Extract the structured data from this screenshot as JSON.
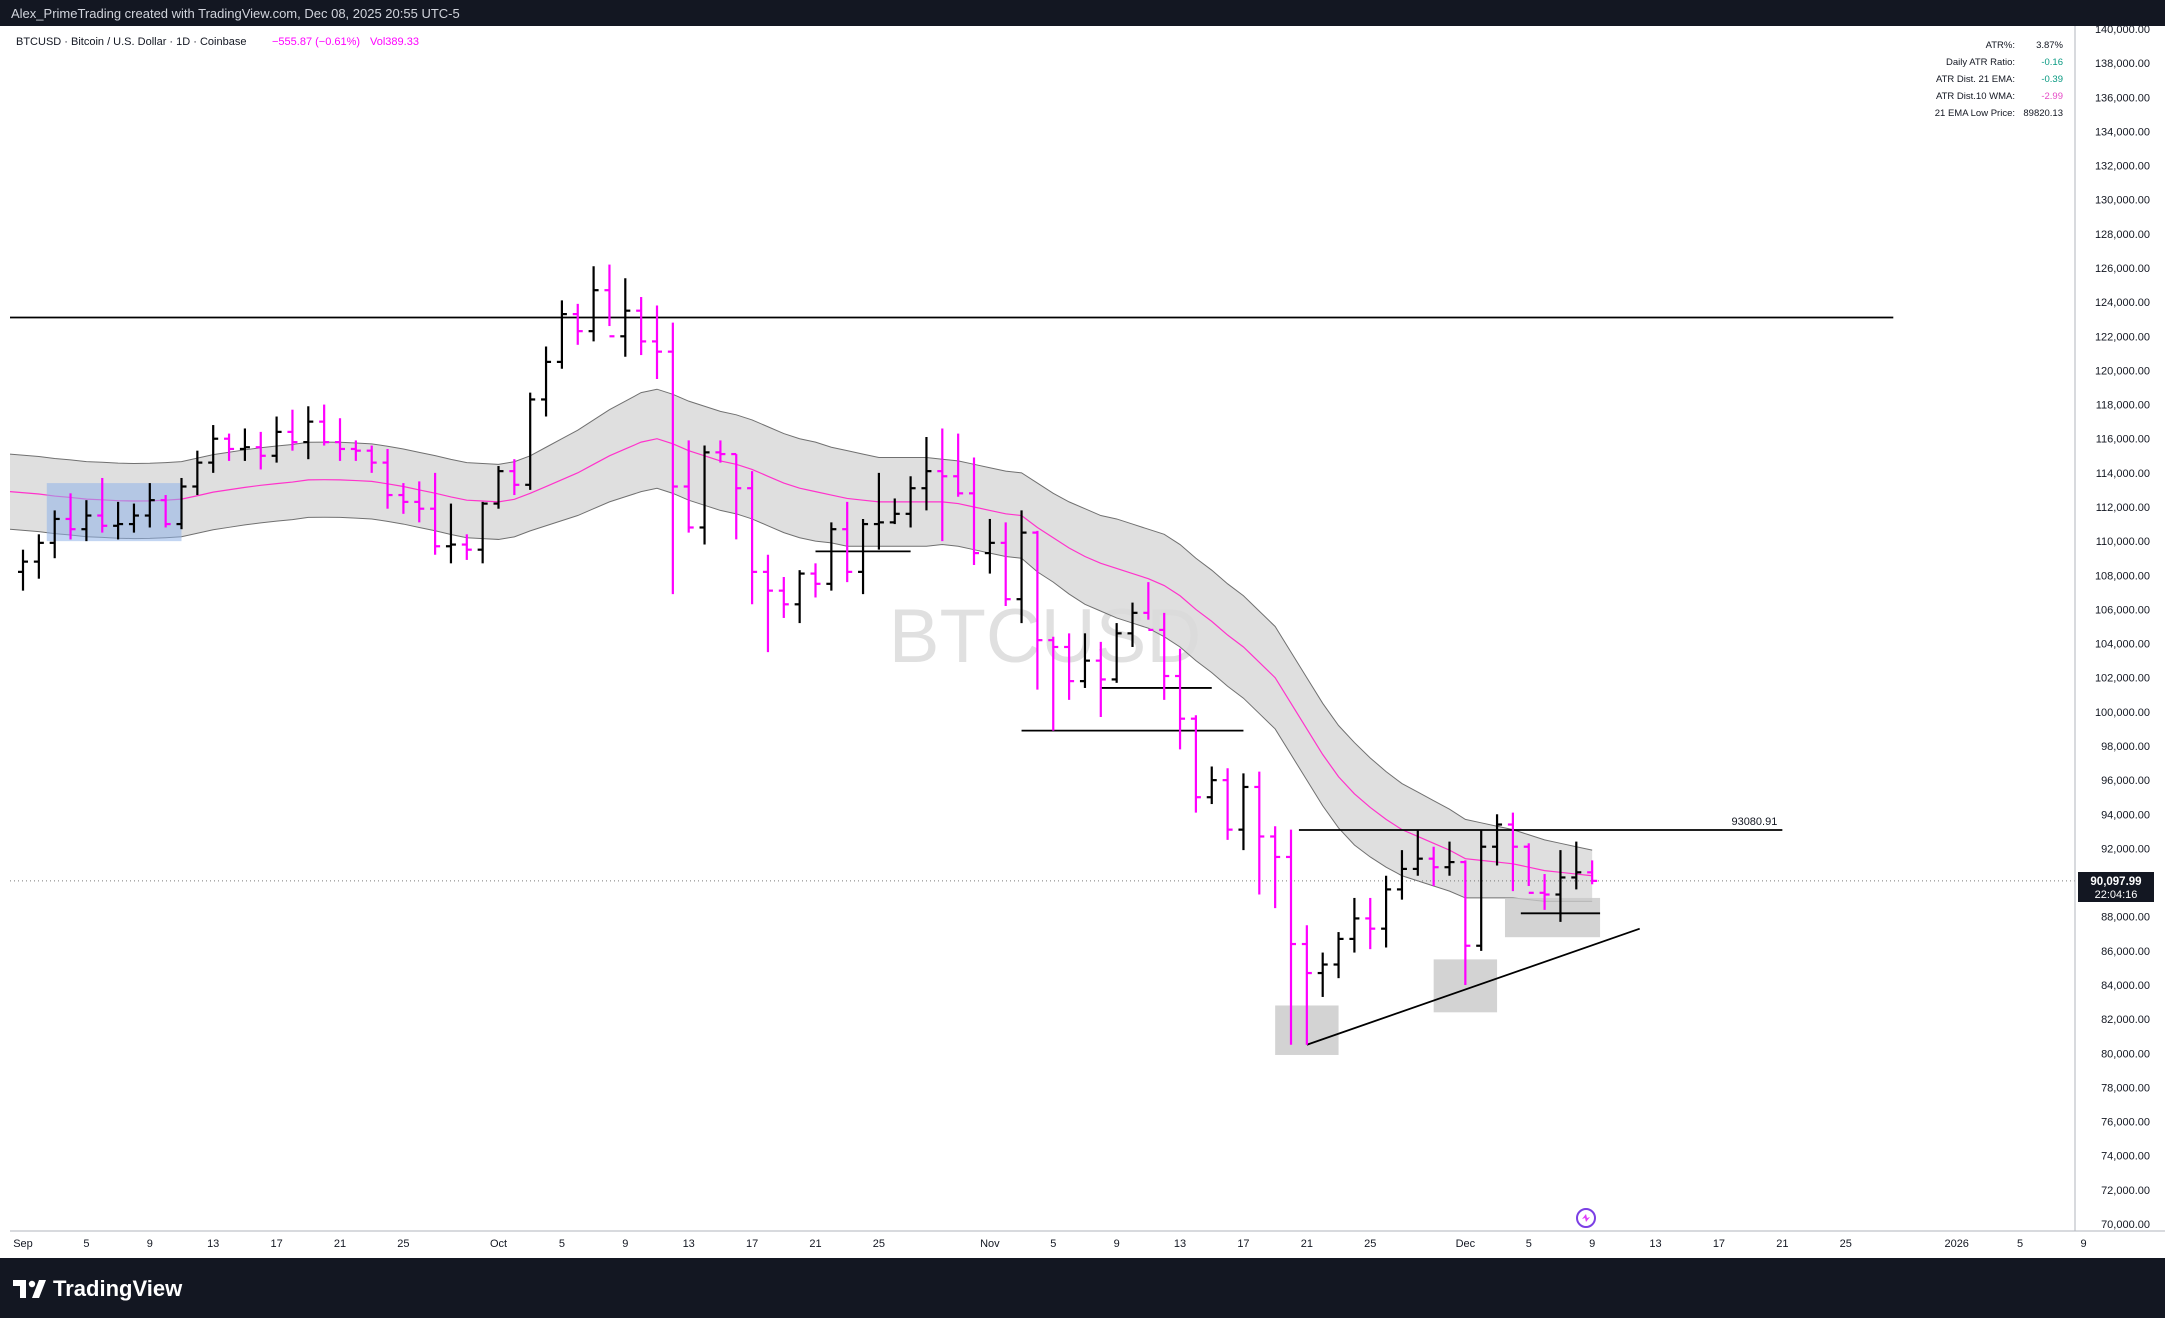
{
  "header": {
    "attribution": "Alex_PrimeTrading created with TradingView.com, Dec 08, 2025 20:55 UTC-5"
  },
  "legend": {
    "symbol": "BTCUSD · Bitcoin / U.S. Dollar · 1D · Coinbase",
    "change": "−555.87 (−0.61%)",
    "volume": "Vol389.33"
  },
  "watermark": "BTCUSD",
  "stats_table": {
    "rows": [
      {
        "label": "ATR%:",
        "value": "3.87%",
        "color": "#131722"
      },
      {
        "label": "Daily ATR Ratio:",
        "value": "-0.16",
        "color": "#089981"
      },
      {
        "label": "ATR Dist. 21 EMA:",
        "value": "-0.39",
        "color": "#089981"
      },
      {
        "label": "ATR Dist.10 WMA:",
        "value": "-2.99",
        "color": "#e64cc7"
      },
      {
        "label": "21 EMA Low Price:",
        "value": "89820.13",
        "color": "#131722"
      }
    ]
  },
  "price_badge": {
    "price": "90,097.99",
    "countdown": "22:04:16"
  },
  "footer": {
    "brand": "TradingView"
  },
  "colors": {
    "bull": "#000000",
    "bear": "#ff00ff",
    "ema": "#ff33cc",
    "band": "#d9d9d9",
    "band_edge": "#707070",
    "zone": "#c8c8c8",
    "blue_zone": "#8fb3e8",
    "grid_text": "#131722"
  },
  "chart_data": {
    "type": "ohlc",
    "symbol": "BTCUSD",
    "timeframe": "1D",
    "ylim": [
      70000,
      140000
    ],
    "ytick_step": 2000,
    "x_ticks": [
      {
        "i": 0,
        "label": "Sep"
      },
      {
        "i": 4,
        "label": "5"
      },
      {
        "i": 8,
        "label": "9"
      },
      {
        "i": 12,
        "label": "13"
      },
      {
        "i": 16,
        "label": "17"
      },
      {
        "i": 20,
        "label": "21"
      },
      {
        "i": 24,
        "label": "25"
      },
      {
        "i": 30,
        "label": "Oct"
      },
      {
        "i": 34,
        "label": "5"
      },
      {
        "i": 38,
        "label": "9"
      },
      {
        "i": 42,
        "label": "13"
      },
      {
        "i": 46,
        "label": "17"
      },
      {
        "i": 50,
        "label": "21"
      },
      {
        "i": 54,
        "label": "25"
      },
      {
        "i": 61,
        "label": "Nov"
      },
      {
        "i": 65,
        "label": "5"
      },
      {
        "i": 69,
        "label": "9"
      },
      {
        "i": 73,
        "label": "13"
      },
      {
        "i": 77,
        "label": "17"
      },
      {
        "i": 81,
        "label": "21"
      },
      {
        "i": 85,
        "label": "25"
      },
      {
        "i": 91,
        "label": "Dec"
      },
      {
        "i": 95,
        "label": "5"
      },
      {
        "i": 99,
        "label": "9"
      },
      {
        "i": 103,
        "label": "13"
      },
      {
        "i": 107,
        "label": "17"
      },
      {
        "i": 111,
        "label": "21"
      },
      {
        "i": 115,
        "label": "25"
      },
      {
        "i": 122,
        "label": "2026"
      },
      {
        "i": 126,
        "label": "5"
      },
      {
        "i": 130,
        "label": "9"
      }
    ],
    "bars": [
      [
        108200,
        109500,
        107100,
        108800
      ],
      [
        108800,
        110400,
        107800,
        109900
      ],
      [
        109900,
        111800,
        109000,
        111300
      ],
      [
        111300,
        112800,
        110100,
        110700
      ],
      [
        110700,
        112400,
        110000,
        111500
      ],
      [
        111500,
        113700,
        110500,
        110900
      ],
      [
        110900,
        112300,
        110100,
        111000
      ],
      [
        111000,
        112200,
        110500,
        111500
      ],
      [
        111500,
        113400,
        110800,
        112400
      ],
      [
        112400,
        112700,
        110800,
        111000
      ],
      [
        111000,
        113700,
        110700,
        113200
      ],
      [
        113200,
        115300,
        112700,
        114600
      ],
      [
        114600,
        116800,
        114000,
        116000
      ],
      [
        116000,
        116300,
        114700,
        115400
      ],
      [
        115400,
        116600,
        114700,
        115500
      ],
      [
        115500,
        116400,
        114200,
        115000
      ],
      [
        115000,
        117300,
        114600,
        116400
      ],
      [
        116400,
        117700,
        115300,
        115800
      ],
      [
        115800,
        117900,
        114800,
        117000
      ],
      [
        117000,
        118000,
        115600,
        115800
      ],
      [
        115800,
        117200,
        114700,
        115400
      ],
      [
        115400,
        115900,
        114700,
        115300
      ],
      [
        115300,
        115600,
        114000,
        114600
      ],
      [
        114600,
        115400,
        111900,
        112700
      ],
      [
        112700,
        113400,
        111600,
        112300
      ],
      [
        112300,
        113500,
        111100,
        111900
      ],
      [
        111900,
        114000,
        109200,
        109700
      ],
      [
        109700,
        112200,
        108700,
        109800
      ],
      [
        109800,
        110400,
        108900,
        109500
      ],
      [
        109500,
        112300,
        108700,
        112200
      ],
      [
        112200,
        114400,
        111900,
        114100
      ],
      [
        114100,
        114800,
        112700,
        113300
      ],
      [
        113300,
        118700,
        113000,
        118300
      ],
      [
        118300,
        121400,
        117300,
        120500
      ],
      [
        120500,
        124100,
        120100,
        123300
      ],
      [
        123300,
        123900,
        121500,
        122300
      ],
      [
        122300,
        126100,
        121700,
        124700
      ],
      [
        124700,
        126200,
        122600,
        122000
      ],
      [
        122000,
        125400,
        120800,
        123500
      ],
      [
        123500,
        124300,
        120900,
        121700
      ],
      [
        121700,
        123800,
        119500,
        121100
      ],
      [
        121100,
        122800,
        106900,
        113200
      ],
      [
        113200,
        115900,
        110500,
        110800
      ],
      [
        110800,
        115600,
        109800,
        115200
      ],
      [
        115200,
        115900,
        114600,
        115100
      ],
      [
        115100,
        115100,
        110100,
        113100
      ],
      [
        113100,
        114100,
        106300,
        108200
      ],
      [
        108200,
        109200,
        103500,
        107100
      ],
      [
        107100,
        107900,
        105500,
        106300
      ],
      [
        106300,
        108300,
        105200,
        108100
      ],
      [
        108100,
        108700,
        106700,
        107500
      ],
      [
        107500,
        111100,
        107100,
        110700
      ],
      [
        110700,
        112300,
        107600,
        108200
      ],
      [
        108200,
        111300,
        106900,
        111000
      ],
      [
        111000,
        114000,
        109500,
        111100
      ],
      [
        111100,
        112500,
        111000,
        111600
      ],
      [
        111600,
        113800,
        110800,
        113100
      ],
      [
        113100,
        116100,
        111800,
        114100
      ],
      [
        114100,
        116600,
        110000,
        113800
      ],
      [
        113800,
        116300,
        112600,
        112800
      ],
      [
        112800,
        114900,
        108600,
        109300
      ],
      [
        109300,
        111300,
        108100,
        109900
      ],
      [
        109900,
        111100,
        106200,
        106600
      ],
      [
        106600,
        111800,
        105200,
        110500
      ],
      [
        110500,
        110600,
        101300,
        104200
      ],
      [
        104200,
        104400,
        98900,
        103800
      ],
      [
        103800,
        104600,
        100700,
        101800
      ],
      [
        101800,
        104600,
        101400,
        103000
      ],
      [
        103000,
        104100,
        99700,
        101900
      ],
      [
        101900,
        105200,
        101700,
        104600
      ],
      [
        104600,
        106400,
        103800,
        105800
      ],
      [
        105800,
        107600,
        105400,
        104800
      ],
      [
        104800,
        105800,
        100700,
        102100
      ],
      [
        102100,
        103700,
        97800,
        99600
      ],
      [
        99600,
        99800,
        94100,
        95000
      ],
      [
        95000,
        96800,
        94600,
        96000
      ],
      [
        96000,
        96700,
        92500,
        93100
      ],
      [
        93100,
        96400,
        91900,
        95600
      ],
      [
        95600,
        96500,
        89300,
        92700
      ],
      [
        92700,
        93300,
        88500,
        91500
      ],
      [
        91500,
        93100,
        80500,
        86400
      ],
      [
        86400,
        87500,
        80500,
        84700
      ],
      [
        84700,
        85900,
        83300,
        85200
      ],
      [
        85200,
        87100,
        84400,
        86700
      ],
      [
        86700,
        89100,
        85900,
        87900
      ],
      [
        87900,
        89100,
        86100,
        87300
      ],
      [
        87300,
        90400,
        86200,
        89600
      ],
      [
        89600,
        91900,
        89000,
        90800
      ],
      [
        90800,
        93100,
        90400,
        91400
      ],
      [
        91400,
        92100,
        89800,
        90900
      ],
      [
        90900,
        92400,
        90400,
        91200
      ],
      [
        91200,
        91300,
        84000,
        86300
      ],
      [
        86300,
        93100,
        86000,
        92100
      ],
      [
        92100,
        94000,
        91000,
        93400
      ],
      [
        93400,
        94100,
        89500,
        92100
      ],
      [
        92100,
        92300,
        89800,
        89400
      ],
      [
        89400,
        90500,
        88400,
        89300
      ],
      [
        89300,
        91900,
        87700,
        90300
      ],
      [
        90300,
        92400,
        89600,
        90600
      ],
      [
        90600,
        91300,
        89900,
        90100
      ]
    ],
    "ema21": [
      112900,
      112760,
      112640,
      112560,
      112460,
      112420,
      112370,
      112350,
      112360,
      112400,
      112460,
      112660,
      112870,
      113010,
      113150,
      113270,
      113370,
      113460,
      113590,
      113600,
      113590,
      113550,
      113500,
      113360,
      113200,
      113000,
      112810,
      112590,
      112400,
      112350,
      112300,
      112450,
      112800,
      113200,
      113600,
      114000,
      114500,
      115000,
      115400,
      115800,
      116000,
      115700,
      115300,
      115000,
      114700,
      114500,
      114200,
      113800,
      113400,
      113100,
      112900,
      112700,
      112500,
      112400,
      112300,
      112300,
      112300,
      112300,
      112300,
      112200,
      112000,
      111800,
      111600,
      111500,
      110800,
      110200,
      109600,
      109100,
      108700,
      108400,
      108100,
      107800,
      107400,
      106800,
      106000,
      105300,
      104500,
      103800,
      102900,
      102000,
      100500,
      99000,
      97500,
      96200,
      95200,
      94400,
      93700,
      93100,
      92700,
      92300,
      91900,
      91400,
      91300,
      91200,
      91100,
      90900,
      90700,
      90600,
      90500,
      90400
    ],
    "band_halfwidth": [
      2200,
      2200,
      2200,
      2200,
      2200,
      2200,
      2200,
      2200,
      2200,
      2200,
      2200,
      2200,
      2200,
      2200,
      2200,
      2200,
      2200,
      2200,
      2200,
      2200,
      2200,
      2200,
      2200,
      2200,
      2200,
      2200,
      2200,
      2200,
      2200,
      2200,
      2200,
      2200,
      2200,
      2300,
      2400,
      2500,
      2600,
      2700,
      2800,
      2900,
      2900,
      2900,
      2900,
      2900,
      2900,
      2900,
      2900,
      2900,
      2900,
      2900,
      2900,
      2800,
      2800,
      2700,
      2600,
      2600,
      2600,
      2600,
      2500,
      2500,
      2500,
      2500,
      2500,
      2500,
      2600,
      2600,
      2700,
      2800,
      2800,
      2900,
      2900,
      2900,
      3000,
      3000,
      3000,
      3000,
      3000,
      3000,
      3000,
      3000,
      3000,
      3000,
      3000,
      3000,
      3000,
      2900,
      2800,
      2700,
      2600,
      2500,
      2400,
      2300,
      2200,
      2100,
      2000,
      1900,
      1800,
      1700,
      1600,
      1500
    ],
    "horizontal_lines": [
      {
        "price": 123100,
        "i0": -1,
        "i1": 118
      },
      {
        "price": 109400,
        "i0": 50,
        "i1": 56
      },
      {
        "price": 101400,
        "i0": 68,
        "i1": 75
      },
      {
        "price": 98900,
        "i0": 63,
        "i1": 77
      },
      {
        "price": 93080.91,
        "i0": 80.5,
        "i1": 111,
        "label": "93080.91"
      },
      {
        "price": 88200,
        "i0": 94.5,
        "i1": 99.5
      }
    ],
    "trendline": {
      "i0": 81,
      "p0": 80500,
      "i1": 102,
      "p1": 87300
    },
    "zones": [
      {
        "i0": 1.5,
        "i1": 10,
        "p0": 110000,
        "p1": 113400,
        "kind": "blue"
      },
      {
        "i0": 79,
        "i1": 83,
        "p0": 79900,
        "p1": 82800,
        "kind": "grey"
      },
      {
        "i0": 89,
        "i1": 93,
        "p0": 82400,
        "p1": 85500,
        "kind": "grey"
      },
      {
        "i0": 93.5,
        "i1": 99.5,
        "p0": 86800,
        "p1": 89100,
        "kind": "grey"
      }
    ],
    "last_price": 90097.99
  }
}
